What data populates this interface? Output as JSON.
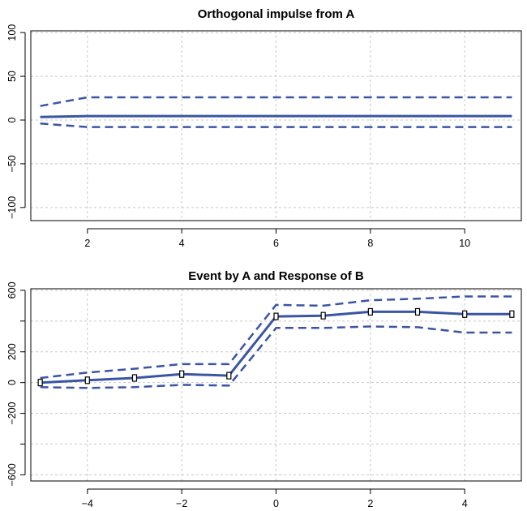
{
  "chart_data": [
    {
      "type": "line",
      "title": "Orthogonal impulse from A",
      "xlabel": "",
      "ylabel": "",
      "xlim": [
        0.8,
        11.2
      ],
      "ylim": [
        -115,
        102
      ],
      "x_ticks": [
        2,
        4,
        6,
        8,
        10
      ],
      "y_ticks": [
        -100,
        -50,
        0,
        50,
        100
      ],
      "x_tick_labels": [
        "2",
        "4",
        "6",
        "8",
        "10"
      ],
      "y_tick_labels": [
        "−100",
        "−50",
        "0",
        "50",
        "100"
      ],
      "grid": true,
      "x": [
        1,
        2,
        3,
        4,
        5,
        6,
        7,
        8,
        9,
        10,
        11
      ],
      "series": [
        {
          "role": "estimate",
          "style": "solid",
          "color": "#3a55a4",
          "values": [
            3.5,
            4.5,
            4.5,
            4.5,
            4.5,
            4.5,
            4.5,
            4.5,
            4.5,
            4.5,
            4.5
          ]
        },
        {
          "role": "upper",
          "style": "dashed",
          "color": "#3a55a4",
          "values": [
            16,
            26,
            26,
            26,
            26,
            26,
            26,
            26,
            26,
            26,
            26
          ]
        },
        {
          "role": "lower",
          "style": "dashed",
          "color": "#3a55a4",
          "values": [
            -4,
            -8,
            -8,
            -8,
            -8,
            -8,
            -8,
            -8,
            -8,
            -8,
            -8
          ]
        }
      ]
    },
    {
      "type": "line",
      "title": "Event by A and Response of B",
      "xlabel": "",
      "ylabel": "",
      "xlim": [
        -5.2,
        5.2
      ],
      "ylim": [
        -640,
        610
      ],
      "x_ticks": [
        -4,
        -2,
        0,
        2,
        4
      ],
      "y_ticks": [
        -600,
        -400,
        -200,
        0,
        200,
        400,
        600
      ],
      "x_tick_labels": [
        "−4",
        "−2",
        "0",
        "2",
        "4"
      ],
      "y_tick_labels": [
        "−600",
        "",
        "−200",
        "0",
        "200",
        "",
        "600"
      ],
      "grid": true,
      "x": [
        -5,
        -4,
        -3,
        -2,
        -1,
        0,
        1,
        2,
        3,
        4,
        5
      ],
      "series": [
        {
          "role": "estimate",
          "style": "solid",
          "color": "#3a55a4",
          "markers": true,
          "values": [
            0,
            15,
            30,
            55,
            45,
            430,
            435,
            460,
            460,
            445,
            445
          ]
        },
        {
          "role": "upper",
          "style": "dashed",
          "color": "#3a55a4",
          "values": [
            30,
            65,
            90,
            120,
            120,
            505,
            500,
            535,
            545,
            560,
            560
          ]
        },
        {
          "role": "lower",
          "style": "dashed",
          "color": "#3a55a4",
          "values": [
            -30,
            -35,
            -30,
            -15,
            -20,
            355,
            355,
            365,
            360,
            325,
            325
          ]
        }
      ]
    }
  ]
}
